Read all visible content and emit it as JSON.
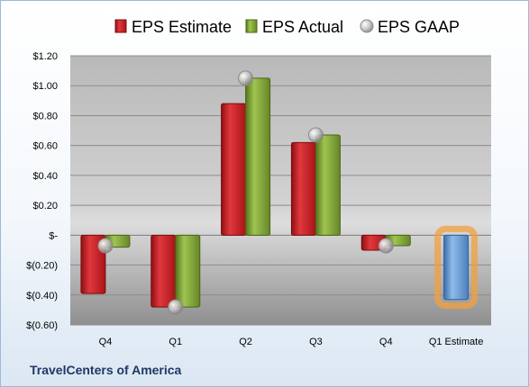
{
  "chart_data": {
    "type": "bar",
    "title": "",
    "xlabel": "",
    "ylabel": "",
    "categories": [
      "Q4",
      "Q1",
      "Q2",
      "Q3",
      "Q4",
      "Q1 Estimate"
    ],
    "ylim": [
      -0.6,
      1.2
    ],
    "yticks": [
      -0.6,
      -0.4,
      -0.2,
      0,
      0.2,
      0.4,
      0.6,
      0.8,
      1.0,
      1.2
    ],
    "ytick_labels": [
      "$(0.60)",
      "$(0.40)",
      "$(0.20)",
      "$-",
      "$0.20",
      "$0.40",
      "$0.60",
      "$0.80",
      "$1.00",
      "$1.20"
    ],
    "grid": true,
    "legend_position": "top",
    "series": [
      {
        "name": "EPS Estimate",
        "kind": "bar",
        "color": "#d9262c",
        "values": [
          -0.39,
          -0.48,
          0.88,
          0.62,
          -0.1,
          null
        ]
      },
      {
        "name": "EPS Actual",
        "kind": "bar",
        "color": "#8cb43c",
        "values": [
          -0.08,
          -0.48,
          1.05,
          0.67,
          -0.07,
          null
        ]
      },
      {
        "name": "EPS GAAP",
        "kind": "marker",
        "color": "#b4b4b4",
        "values": [
          -0.07,
          -0.48,
          1.05,
          0.67,
          -0.07,
          null
        ]
      },
      {
        "name": "Q1 Estimate",
        "kind": "bar",
        "color": "#6fa0d8",
        "highlight": "#f0a040",
        "values": [
          null,
          null,
          null,
          null,
          null,
          -0.43
        ]
      }
    ]
  },
  "footer": {
    "company": "TravelCenters of America"
  }
}
